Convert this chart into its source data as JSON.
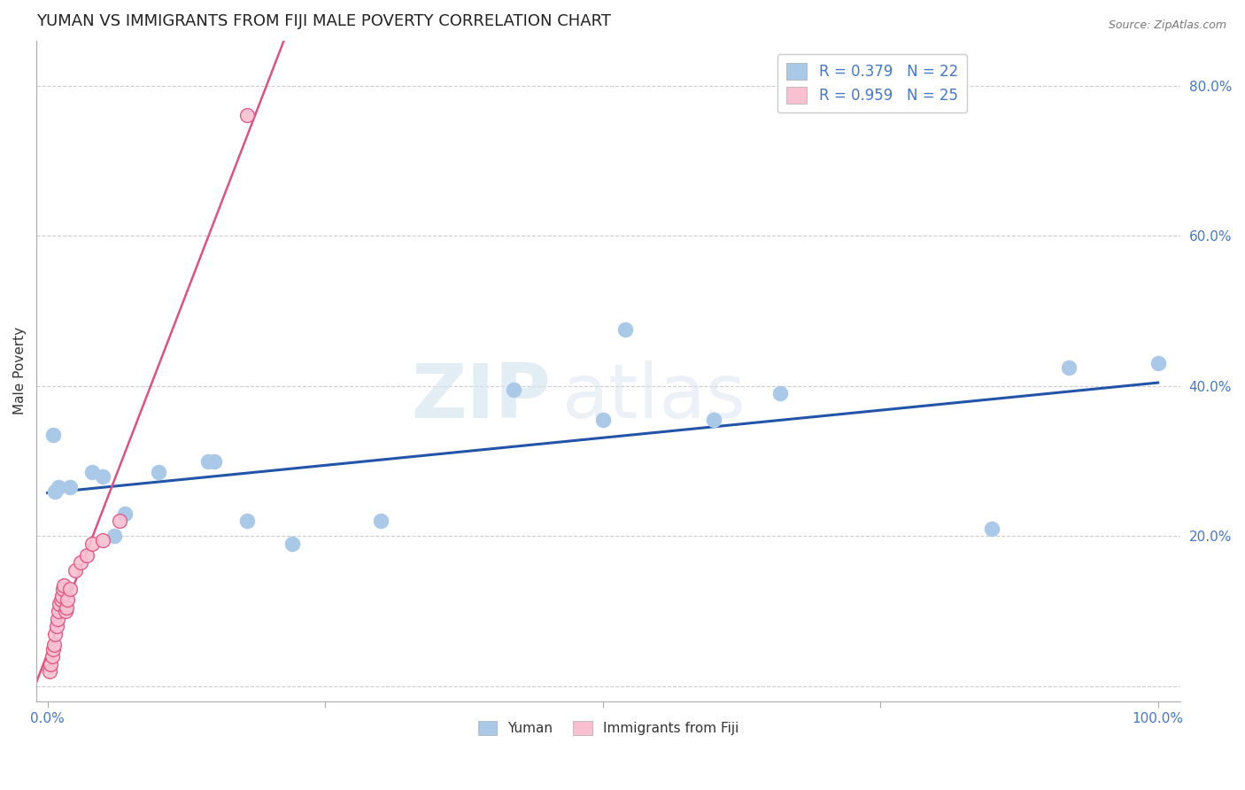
{
  "title": "YUMAN VS IMMIGRANTS FROM FIJI MALE POVERTY CORRELATION CHART",
  "source_text": "Source: ZipAtlas.com",
  "ylabel": "Male Poverty",
  "watermark": "ZIPatlas",
  "yuman_x": [
    0.005,
    0.007,
    0.01,
    0.02,
    0.04,
    0.05,
    0.06,
    0.07,
    0.1,
    0.145,
    0.15,
    0.18,
    0.22,
    0.3,
    0.42,
    0.5,
    0.52,
    0.6,
    0.66,
    0.85,
    0.92,
    1.0
  ],
  "yuman_y": [
    0.335,
    0.26,
    0.265,
    0.265,
    0.285,
    0.28,
    0.2,
    0.23,
    0.285,
    0.3,
    0.3,
    0.22,
    0.19,
    0.22,
    0.395,
    0.355,
    0.475,
    0.355,
    0.39,
    0.21,
    0.425,
    0.43
  ],
  "fiji_x": [
    0.002,
    0.003,
    0.004,
    0.005,
    0.006,
    0.007,
    0.008,
    0.009,
    0.01,
    0.011,
    0.012,
    0.013,
    0.014,
    0.015,
    0.016,
    0.017,
    0.018,
    0.02,
    0.025,
    0.03,
    0.035,
    0.04,
    0.05,
    0.065,
    0.18
  ],
  "fiji_y": [
    0.02,
    0.03,
    0.04,
    0.05,
    0.055,
    0.07,
    0.08,
    0.09,
    0.1,
    0.11,
    0.115,
    0.12,
    0.13,
    0.135,
    0.1,
    0.105,
    0.115,
    0.13,
    0.155,
    0.165,
    0.175,
    0.19,
    0.195,
    0.22,
    0.76
  ],
  "yuman_R": 0.379,
  "yuman_N": 22,
  "fiji_R": 0.959,
  "fiji_N": 25,
  "yuman_color": "#aac8e8",
  "yuman_line_color": "#2255aa",
  "fiji_color": "#f8c0d0",
  "fiji_line_color": "#e05080",
  "legend_yuman_label": "Yuman",
  "legend_fiji_label": "Immigrants from Fiji",
  "xlim": [
    -0.01,
    1.02
  ],
  "ylim": [
    -0.02,
    0.86
  ],
  "title_fontsize": 13,
  "axis_label_fontsize": 11,
  "tick_fontsize": 11,
  "legend_fontsize": 12
}
